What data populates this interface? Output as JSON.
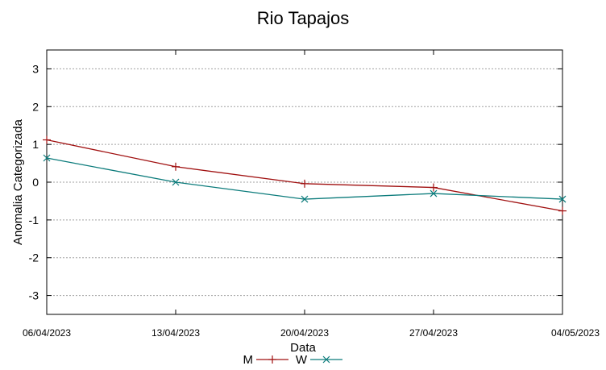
{
  "chart_data": {
    "type": "line",
    "title": "Rio Tapajos",
    "xlabel": "Data",
    "ylabel": "Anomalia Categorizada",
    "categories": [
      "06/04/2023",
      "13/04/2023",
      "20/04/2023",
      "27/04/2023",
      "04/05/2023"
    ],
    "ylim": [
      -3.5,
      3.5
    ],
    "yticks": [
      3,
      2,
      1,
      0,
      -1,
      -2,
      -3
    ],
    "grid": true,
    "legend_position": "bottom",
    "series": [
      {
        "name": "M",
        "color": "#a01010",
        "marker": "plus",
        "values": [
          1.12,
          0.41,
          -0.04,
          -0.14,
          -0.76
        ]
      },
      {
        "name": "W",
        "color": "#0b7b7b",
        "marker": "cross",
        "values": [
          0.64,
          0.0,
          -0.45,
          -0.3,
          -0.45
        ]
      }
    ]
  }
}
